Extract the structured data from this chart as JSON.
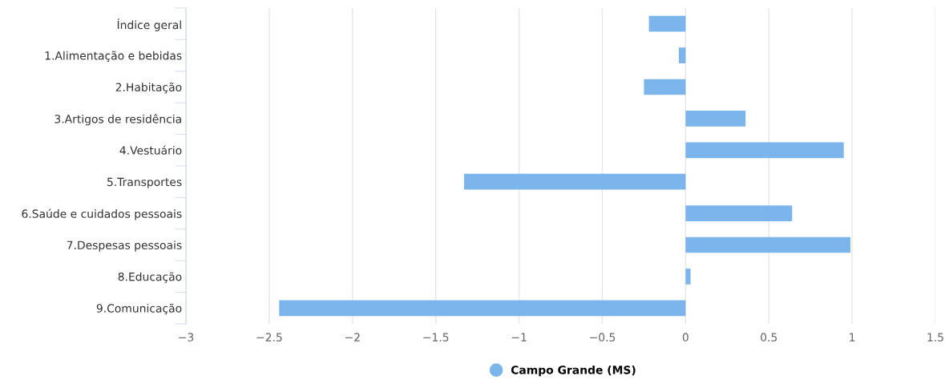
{
  "chart_data": {
    "type": "bar",
    "orientation": "horizontal",
    "categories": [
      "Índice geral",
      "1.Alimentação e bebidas",
      "2.Habitação",
      "3.Artigos de residência",
      "4.Vestuário",
      "5.Transportes",
      "6.Saúde e cuidados pessoais",
      "7.Despesas pessoais",
      "8.Educação",
      "9.Comunicação"
    ],
    "series": [
      {
        "name": "Campo Grande (MS)",
        "color": "#7cb5ec",
        "values": [
          -0.22,
          -0.04,
          -0.25,
          0.36,
          0.95,
          -1.33,
          0.64,
          0.99,
          0.03,
          -2.44
        ]
      }
    ],
    "xlim": [
      -3,
      1.5
    ],
    "xticks": [
      {
        "value": -3,
        "label": "−3"
      },
      {
        "value": -2.5,
        "label": "−2.5"
      },
      {
        "value": -2,
        "label": "−2"
      },
      {
        "value": -1.5,
        "label": "−1.5"
      },
      {
        "value": -1,
        "label": "−1"
      },
      {
        "value": -0.5,
        "label": "−0.5"
      },
      0,
      0.5,
      1,
      1.5
    ],
    "grid": "x",
    "legend": "bottom"
  }
}
